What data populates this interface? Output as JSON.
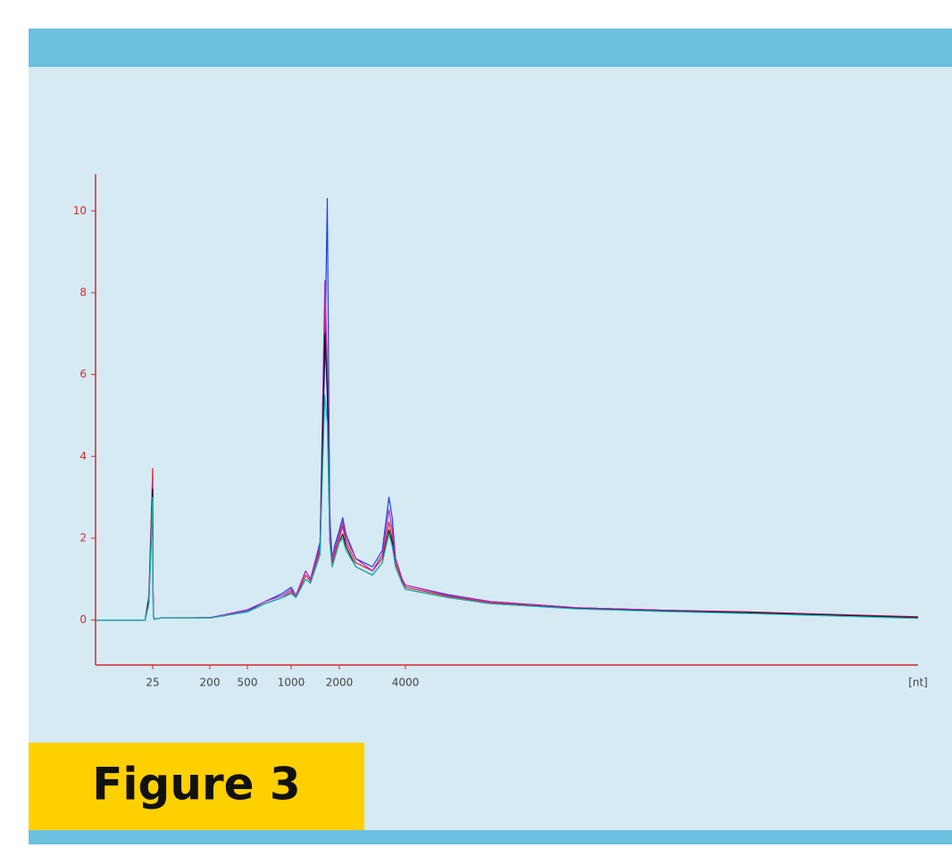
{
  "figure_label": "Figure 3",
  "chart_data": {
    "type": "line",
    "x_label": "[nt]",
    "x": [
      10,
      20,
      23,
      24,
      25,
      26,
      27,
      30,
      50,
      100,
      200,
      300,
      500,
      700,
      900,
      1000,
      1100,
      1300,
      1400,
      1600,
      1700,
      1750,
      1800,
      1850,
      1900,
      2000,
      2100,
      2200,
      2500,
      3000,
      3300,
      3500,
      3600,
      3700,
      3900,
      4000,
      4500,
      5000,
      6000,
      7000,
      8000,
      9000,
      10000
    ],
    "xlim": [
      10,
      10000
    ],
    "xticks": [
      25,
      200,
      500,
      1000,
      2000,
      4000
    ],
    "ylim": [
      -1.1,
      10.9
    ],
    "yticks": [
      0,
      2,
      4,
      6,
      8,
      10
    ],
    "axis_color": "#d42a2a",
    "series": [
      {
        "color": "#1f3fe0",
        "values": [
          0,
          0,
          0,
          0.4,
          2.8,
          0.7,
          0.1,
          0.02,
          0.05,
          0.05,
          0.06,
          0.1,
          0.22,
          0.45,
          0.65,
          0.8,
          0.6,
          1.2,
          1.0,
          1.9,
          6.5,
          10.3,
          2.6,
          1.5,
          1.8,
          2.2,
          2.5,
          2.1,
          1.5,
          1.3,
          1.7,
          3.0,
          2.5,
          1.5,
          1.0,
          0.85,
          0.62,
          0.45,
          0.3,
          0.24,
          0.19,
          0.13,
          0.07
        ]
      },
      {
        "color": "#e02020",
        "values": [
          0,
          0,
          0,
          0.6,
          3.7,
          0.9,
          0.1,
          0.02,
          0.05,
          0.05,
          0.05,
          0.1,
          0.2,
          0.4,
          0.55,
          0.7,
          0.55,
          1.1,
          0.95,
          1.7,
          7.8,
          6.0,
          2.2,
          1.4,
          1.6,
          2.0,
          2.3,
          1.9,
          1.4,
          1.2,
          1.5,
          2.4,
          2.0,
          1.4,
          0.95,
          0.8,
          0.58,
          0.42,
          0.3,
          0.24,
          0.2,
          0.14,
          0.08
        ]
      },
      {
        "color": "#c020c0",
        "values": [
          0,
          0,
          0,
          0.5,
          3.4,
          0.8,
          0.1,
          0.02,
          0.05,
          0.05,
          0.06,
          0.12,
          0.25,
          0.45,
          0.6,
          0.75,
          0.6,
          1.2,
          1.0,
          1.8,
          8.3,
          6.2,
          2.4,
          1.5,
          1.7,
          2.1,
          2.4,
          2.0,
          1.5,
          1.2,
          1.6,
          2.7,
          2.2,
          1.5,
          1.0,
          0.85,
          0.6,
          0.45,
          0.3,
          0.24,
          0.19,
          0.13,
          0.07
        ]
      },
      {
        "color": "#111111",
        "values": [
          0,
          0,
          0,
          0.5,
          3.2,
          0.8,
          0.1,
          0.02,
          0.05,
          0.05,
          0.05,
          0.1,
          0.2,
          0.4,
          0.55,
          0.65,
          0.55,
          1.0,
          0.9,
          1.6,
          7.0,
          5.5,
          2.0,
          1.3,
          1.5,
          1.9,
          2.1,
          1.8,
          1.3,
          1.1,
          1.4,
          2.2,
          1.9,
          1.3,
          0.9,
          0.75,
          0.55,
          0.4,
          0.28,
          0.22,
          0.18,
          0.12,
          0.06
        ]
      },
      {
        "color": "#10b8b8",
        "values": [
          0,
          0,
          0,
          0.4,
          3.0,
          0.7,
          0.1,
          0.02,
          0.05,
          0.05,
          0.05,
          0.1,
          0.2,
          0.4,
          0.55,
          0.65,
          0.55,
          1.0,
          0.9,
          1.6,
          5.5,
          4.8,
          1.9,
          1.3,
          1.5,
          1.9,
          2.0,
          1.7,
          1.3,
          1.1,
          1.4,
          2.1,
          1.8,
          1.3,
          0.9,
          0.75,
          0.55,
          0.4,
          0.27,
          0.21,
          0.16,
          0.1,
          0.04
        ]
      }
    ]
  }
}
